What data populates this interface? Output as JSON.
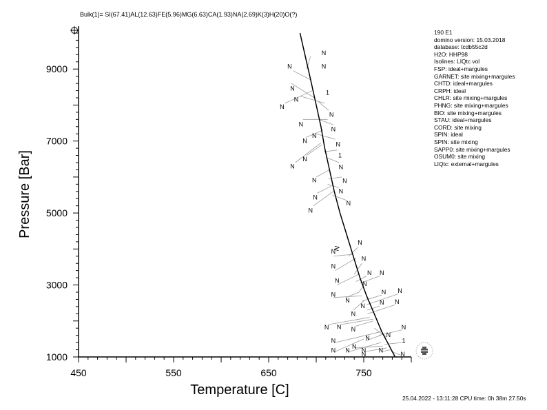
{
  "header": {
    "bulk": "Bulk(1)= SI(67.41)AL(12.63)FE(5.96)MG(6.63)CA(1.93)NA(2.69)K(3)H(20)O(?)"
  },
  "info_lines": [
    "190 E1",
    "domino version: 15.03.2018",
    "database: tcdb55c2d",
    "H2O: HHP98",
    "Isolines: LIQtc vol",
    "FSP: ideal+margules",
    "GARNET: site mixing+margules",
    "CHTD: ideal+margules",
    "CRPH: ideal",
    "CHLR: site mixing+margules",
    "PHNG: site mixing+margules",
    "BIO: site mixing+margules",
    "STAU: ideal+margules",
    "CORD: site mixing",
    "SPIN: ideal",
    "SPIN: site mixing",
    "SAPP0: site mixing+margules",
    "OSUM0: site mixing",
    "LIQtc: external+margules"
  ],
  "footer": {
    "timestamp": "25.04.2022 - 13:11:28 CPU time: 0h 38m 27.50s"
  },
  "chart_data": {
    "type": "line",
    "xlabel": "Temperature [C]",
    "ylabel": "Pressure [Bar]",
    "xlim": [
      450,
      800
    ],
    "ylim": [
      1000,
      10000
    ],
    "x_ticks": [
      450,
      550,
      650,
      750
    ],
    "y_ticks": [
      1000,
      3000,
      5000,
      7000,
      9000
    ],
    "grid": false,
    "series": [
      {
        "x": [
          683,
          689,
          695,
          700,
          705,
          709,
          714,
          719,
          725,
          732,
          739,
          746,
          753,
          761,
          769,
          777,
          783
        ],
        "y": [
          10000,
          9300,
          8600,
          8000,
          7400,
          6800,
          6200,
          5600,
          5000,
          4400,
          3800,
          3200,
          2700,
          2200,
          1700,
          1300,
          1000
        ]
      }
    ],
    "curve_label": "N",
    "curve_label_point": {
      "x": 724,
      "y": 4000
    },
    "field_labels": [
      {
        "text": "N",
        "x": 708,
        "y": 9440
      },
      {
        "text": "N",
        "x": 708,
        "y": 9070
      },
      {
        "text": "N",
        "x": 672,
        "y": 9070
      },
      {
        "text": "N",
        "x": 675,
        "y": 8460
      },
      {
        "text": "1",
        "x": 712,
        "y": 8340
      },
      {
        "text": "N",
        "x": 679,
        "y": 8150
      },
      {
        "text": "N",
        "x": 664,
        "y": 7950
      },
      {
        "text": "N",
        "x": 716,
        "y": 7730
      },
      {
        "text": "N",
        "x": 684,
        "y": 7460
      },
      {
        "text": "N",
        "x": 718,
        "y": 7330
      },
      {
        "text": "N",
        "x": 698,
        "y": 7150
      },
      {
        "text": "N",
        "x": 688,
        "y": 7000
      },
      {
        "text": "N",
        "x": 723,
        "y": 6910
      },
      {
        "text": "1",
        "x": 725,
        "y": 6600
      },
      {
        "text": "N",
        "x": 688,
        "y": 6500
      },
      {
        "text": "N",
        "x": 675,
        "y": 6290
      },
      {
        "text": "N",
        "x": 726,
        "y": 6280
      },
      {
        "text": "N",
        "x": 698,
        "y": 5910
      },
      {
        "text": "N",
        "x": 730,
        "y": 5890
      },
      {
        "text": "N",
        "x": 726,
        "y": 5610
      },
      {
        "text": "N",
        "x": 699,
        "y": 5430
      },
      {
        "text": "N",
        "x": 734,
        "y": 5270
      },
      {
        "text": "N",
        "x": 694,
        "y": 5070
      },
      {
        "text": "N",
        "x": 746,
        "y": 4180
      },
      {
        "text": "N",
        "x": 718,
        "y": 3930
      },
      {
        "text": "N",
        "x": 750,
        "y": 3730
      },
      {
        "text": "N",
        "x": 718,
        "y": 3520
      },
      {
        "text": "N",
        "x": 756,
        "y": 3340
      },
      {
        "text": "N",
        "x": 769,
        "y": 3340
      },
      {
        "text": "N",
        "x": 722,
        "y": 3120
      },
      {
        "text": "N",
        "x": 751,
        "y": 3030
      },
      {
        "text": "N",
        "x": 788,
        "y": 2840
      },
      {
        "text": "N",
        "x": 771,
        "y": 2800
      },
      {
        "text": "N",
        "x": 718,
        "y": 2730
      },
      {
        "text": "N",
        "x": 733,
        "y": 2570
      },
      {
        "text": "N",
        "x": 785,
        "y": 2530
      },
      {
        "text": "N",
        "x": 769,
        "y": 2510
      },
      {
        "text": "N",
        "x": 749,
        "y": 2420
      },
      {
        "text": "N",
        "x": 739,
        "y": 2200
      },
      {
        "text": "N",
        "x": 711,
        "y": 1820
      },
      {
        "text": "N",
        "x": 724,
        "y": 1830
      },
      {
        "text": "N",
        "x": 792,
        "y": 1820
      },
      {
        "text": "N",
        "x": 739,
        "y": 1770
      },
      {
        "text": "N",
        "x": 776,
        "y": 1610
      },
      {
        "text": "N",
        "x": 754,
        "y": 1530
      },
      {
        "text": "N",
        "x": 718,
        "y": 1450
      },
      {
        "text": "1",
        "x": 792,
        "y": 1450
      },
      {
        "text": "N",
        "x": 740,
        "y": 1290
      },
      {
        "text": "N",
        "x": 750,
        "y": 1080
      },
      {
        "text": "N",
        "x": 791,
        "y": 1080
      },
      {
        "text": "N",
        "x": 718,
        "y": 1180
      },
      {
        "text": "N",
        "x": 733,
        "y": 1180
      },
      {
        "text": "N",
        "x": 750,
        "y": 1180
      },
      {
        "text": "N",
        "x": 768,
        "y": 1180
      }
    ],
    "field_lines": [
      {
        "x1": 694,
        "y1": 9350,
        "x2": 690,
        "y2": 9000
      },
      {
        "x1": 676,
        "y1": 8950,
        "x2": 694,
        "y2": 8700
      },
      {
        "x1": 674,
        "y1": 8600,
        "x2": 698,
        "y2": 8200
      },
      {
        "x1": 667,
        "y1": 8050,
        "x2": 696,
        "y2": 8400
      },
      {
        "x1": 683,
        "y1": 8250,
        "x2": 709,
        "y2": 8050
      },
      {
        "x1": 713,
        "y1": 7850,
        "x2": 702,
        "y2": 8100
      },
      {
        "x1": 686,
        "y1": 7600,
        "x2": 712,
        "y2": 7600
      },
      {
        "x1": 718,
        "y1": 7450,
        "x2": 703,
        "y2": 7600
      },
      {
        "x1": 689,
        "y1": 7100,
        "x2": 707,
        "y2": 7300
      },
      {
        "x1": 720,
        "y1": 7050,
        "x2": 700,
        "y2": 7200
      },
      {
        "x1": 678,
        "y1": 6400,
        "x2": 705,
        "y2": 6950
      },
      {
        "x1": 690,
        "y1": 6600,
        "x2": 706,
        "y2": 6900
      },
      {
        "x1": 722,
        "y1": 6750,
        "x2": 708,
        "y2": 6700
      },
      {
        "x1": 724,
        "y1": 6400,
        "x2": 710,
        "y2": 6550
      },
      {
        "x1": 700,
        "y1": 6000,
        "x2": 714,
        "y2": 6200
      },
      {
        "x1": 727,
        "y1": 6000,
        "x2": 713,
        "y2": 5950
      },
      {
        "x1": 701,
        "y1": 5550,
        "x2": 716,
        "y2": 5750
      },
      {
        "x1": 724,
        "y1": 5700,
        "x2": 712,
        "y2": 5800
      },
      {
        "x1": 697,
        "y1": 5200,
        "x2": 718,
        "y2": 5600
      },
      {
        "x1": 732,
        "y1": 5350,
        "x2": 717,
        "y2": 5500
      },
      {
        "x1": 718,
        "y1": 3800,
        "x2": 738,
        "y2": 3850
      },
      {
        "x1": 744,
        "y1": 4050,
        "x2": 734,
        "y2": 3800
      },
      {
        "x1": 720,
        "y1": 3400,
        "x2": 742,
        "y2": 3750
      },
      {
        "x1": 748,
        "y1": 3600,
        "x2": 740,
        "y2": 3300
      },
      {
        "x1": 722,
        "y1": 3000,
        "x2": 745,
        "y2": 3300
      },
      {
        "x1": 753,
        "y1": 3250,
        "x2": 742,
        "y2": 3100
      },
      {
        "x1": 767,
        "y1": 3250,
        "x2": 746,
        "y2": 3050
      },
      {
        "x1": 731,
        "y1": 2650,
        "x2": 745,
        "y2": 2800
      },
      {
        "x1": 749,
        "y1": 2950,
        "x2": 745,
        "y2": 2800
      },
      {
        "x1": 786,
        "y1": 2750,
        "x2": 753,
        "y2": 2450
      },
      {
        "x1": 769,
        "y1": 2720,
        "x2": 748,
        "y2": 2550
      },
      {
        "x1": 718,
        "y1": 2650,
        "x2": 748,
        "y2": 2700
      },
      {
        "x1": 739,
        "y1": 2300,
        "x2": 750,
        "y2": 2550
      },
      {
        "x1": 783,
        "y1": 2450,
        "x2": 754,
        "y2": 2200
      },
      {
        "x1": 767,
        "y1": 2420,
        "x2": 754,
        "y2": 2300
      },
      {
        "x1": 713,
        "y1": 1900,
        "x2": 756,
        "y2": 2100
      },
      {
        "x1": 726,
        "y1": 1900,
        "x2": 760,
        "y2": 2050
      },
      {
        "x1": 741,
        "y1": 1850,
        "x2": 760,
        "y2": 2000
      },
      {
        "x1": 790,
        "y1": 1750,
        "x2": 766,
        "y2": 1600
      },
      {
        "x1": 774,
        "y1": 1550,
        "x2": 761,
        "y2": 1800
      },
      {
        "x1": 752,
        "y1": 1450,
        "x2": 768,
        "y2": 1600
      },
      {
        "x1": 720,
        "y1": 1400,
        "x2": 768,
        "y2": 1700
      },
      {
        "x1": 790,
        "y1": 1400,
        "x2": 772,
        "y2": 1350
      },
      {
        "x1": 742,
        "y1": 1250,
        "x2": 770,
        "y2": 1300
      },
      {
        "x1": 720,
        "y1": 1150,
        "x2": 750,
        "y2": 1500
      },
      {
        "x1": 735,
        "y1": 1150,
        "x2": 768,
        "y2": 1400
      },
      {
        "x1": 752,
        "y1": 1150,
        "x2": 774,
        "y2": 1250
      },
      {
        "x1": 770,
        "y1": 1150,
        "x2": 778,
        "y2": 1200
      },
      {
        "x1": 789,
        "y1": 1050,
        "x2": 779,
        "y2": 1150
      }
    ]
  }
}
